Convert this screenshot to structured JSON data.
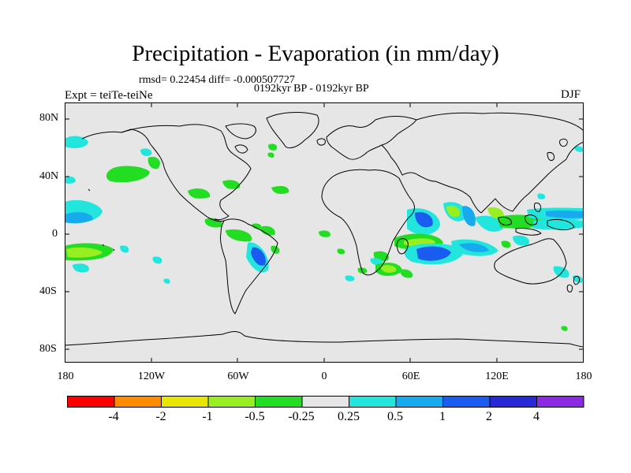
{
  "title": "Precipitation - Evaporation (in mm/day)",
  "stats": "rmsd= 0.22454 diff= -0.000507727",
  "period": "0192kyr BP - 0192kyr BP",
  "experiment": "Expt = teiTe-teiNe",
  "season": "DJF",
  "lat_ticks": [
    "80N",
    "40N",
    "0",
    "40S",
    "80S"
  ],
  "lon_ticks": [
    "180",
    "120W",
    "60W",
    "0",
    "60E",
    "120E",
    "180"
  ],
  "colorbar": {
    "labels": [
      "-4",
      "-2",
      "-1",
      "-0.5",
      "-0.25",
      "0.25",
      "0.5",
      "1",
      "2",
      "4"
    ],
    "colors": [
      "#ff0000",
      "#ff8c00",
      "#e6e600",
      "#99ee22",
      "#22dd22",
      "#e6e6e6",
      "#22e6dd",
      "#18aaee",
      "#1a5cf0",
      "#2828d8",
      "#8a2be2"
    ]
  }
}
